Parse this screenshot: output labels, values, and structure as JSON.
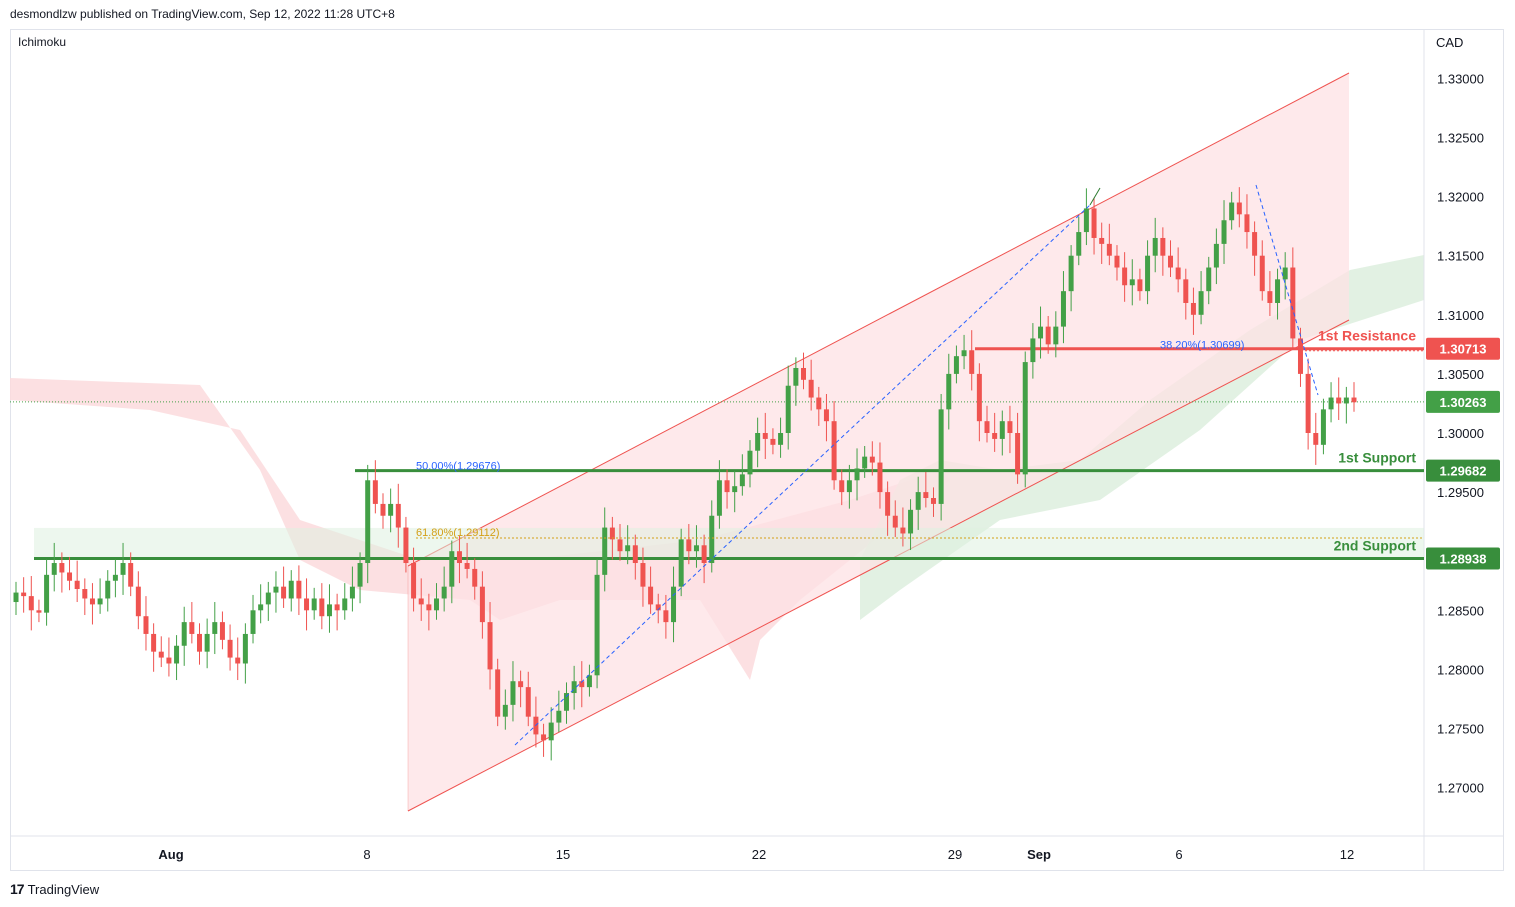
{
  "header": {
    "publisher": "desmondlzw published on TradingView.com, Sep 12, 2022 11:28 UTC+8"
  },
  "indicator": {
    "label": "Ichimoku"
  },
  "currency": "CAD",
  "footer": {
    "brand": "TradingView"
  },
  "colors": {
    "up": "#26a69a",
    "upBody": "#43a047",
    "down": "#ef5350",
    "resistance": "#ef5350",
    "support": "#388e3c",
    "channelFill": "#fde2e4",
    "cloudRed": "#fbdadd",
    "cloudGreen": "#dff0e0"
  },
  "chart_data": {
    "type": "candlestick",
    "title": "",
    "ylim": [
      1.266,
      1.3355
    ],
    "y_ticks": [
      "1.33000",
      "1.32500",
      "1.32000",
      "1.31500",
      "1.31000",
      "1.30500",
      "1.30000",
      "1.29500",
      "1.28500",
      "1.28000",
      "1.27500",
      "1.27000"
    ],
    "x_ticks": [
      {
        "label": "Aug",
        "date": "2022-08-01"
      },
      {
        "label": "8",
        "date": "2022-08-08"
      },
      {
        "label": "15",
        "date": "2022-08-15"
      },
      {
        "label": "22",
        "date": "2022-08-22"
      },
      {
        "label": "29",
        "date": "2022-08-29"
      },
      {
        "label": "Sep",
        "date": "2022-09-01"
      },
      {
        "label": "6",
        "date": "2022-09-06"
      },
      {
        "label": "12",
        "date": "2022-09-12"
      }
    ],
    "levels": [
      {
        "name": "1st Resistance",
        "price": 1.30713,
        "label": "1.30713",
        "kind": "resistance"
      },
      {
        "name": "1st Support",
        "price": 1.29682,
        "label": "1.29682",
        "kind": "support"
      },
      {
        "name": "2nd Support",
        "price": 1.28938,
        "label": "1.28938",
        "kind": "support"
      }
    ],
    "current_price": {
      "price": 1.30263,
      "label": "1.30263"
    },
    "fib_labels": [
      {
        "text": "38.20%(1.30699)",
        "price": 1.30699
      },
      {
        "text": "50.00%(1.29676)",
        "price": 1.29676
      },
      {
        "text": "61.80%(1.29112)",
        "price": 1.29112
      }
    ],
    "close_series": [
      1.2865,
      1.2862,
      1.285,
      1.2848,
      1.288,
      1.289,
      1.2882,
      1.2875,
      1.2868,
      1.286,
      1.2855,
      1.286,
      1.2875,
      1.288,
      1.289,
      1.287,
      1.2845,
      1.283,
      1.2815,
      1.281,
      1.2805,
      1.282,
      1.284,
      1.283,
      1.2815,
      1.283,
      1.284,
      1.2825,
      1.281,
      1.2805,
      1.283,
      1.285,
      1.2855,
      1.2865,
      1.287,
      1.286,
      1.2875,
      1.286,
      1.285,
      1.286,
      1.2845,
      1.2855,
      1.285,
      1.286,
      1.287,
      1.289,
      1.296,
      1.294,
      1.293,
      1.294,
      1.292,
      1.289,
      1.286,
      1.2855,
      1.285,
      1.286,
      1.287,
      1.29,
      1.289,
      1.2885,
      1.287,
      1.284,
      1.28,
      1.276,
      1.277,
      1.279,
      1.2785,
      1.276,
      1.2745,
      1.274,
      1.2755,
      1.2765,
      1.278,
      1.279,
      1.2785,
      1.2795,
      1.288,
      1.292,
      1.291,
      1.29,
      1.2905,
      1.289,
      1.287,
      1.2855,
      1.285,
      1.284,
      1.287,
      1.291,
      1.29,
      1.2905,
      1.289,
      1.293,
      1.296,
      1.295,
      1.2955,
      1.2965,
      1.2985,
      1.3,
      1.2995,
      1.299,
      1.3,
      1.304,
      1.3055,
      1.3045,
      1.303,
      1.302,
      1.301,
      1.296,
      1.295,
      1.296,
      1.297,
      1.298,
      1.2975,
      1.295,
      1.293,
      1.292,
      1.2915,
      1.2935,
      1.295,
      1.2945,
      1.294,
      1.302,
      1.305,
      1.3065,
      1.307,
      1.305,
      1.301,
      1.3,
      1.2995,
      1.301,
      1.3,
      1.2965,
      1.306,
      1.308,
      1.309,
      1.3075,
      1.309,
      1.312,
      1.315,
      1.317,
      1.319,
      1.3165,
      1.316,
      1.315,
      1.314,
      1.3125,
      1.313,
      1.312,
      1.315,
      1.3165,
      1.315,
      1.314,
      1.313,
      1.311,
      1.31,
      1.312,
      1.314,
      1.316,
      1.318,
      1.3195,
      1.3185,
      1.317,
      1.315,
      1.312,
      1.311,
      1.313,
      1.314,
      1.308,
      1.305,
      1.3,
      1.299,
      1.302,
      1.303,
      1.3025,
      1.303,
      1.3026
    ],
    "annotations": [
      "1st Resistance",
      "1st Support",
      "2nd Support"
    ]
  }
}
